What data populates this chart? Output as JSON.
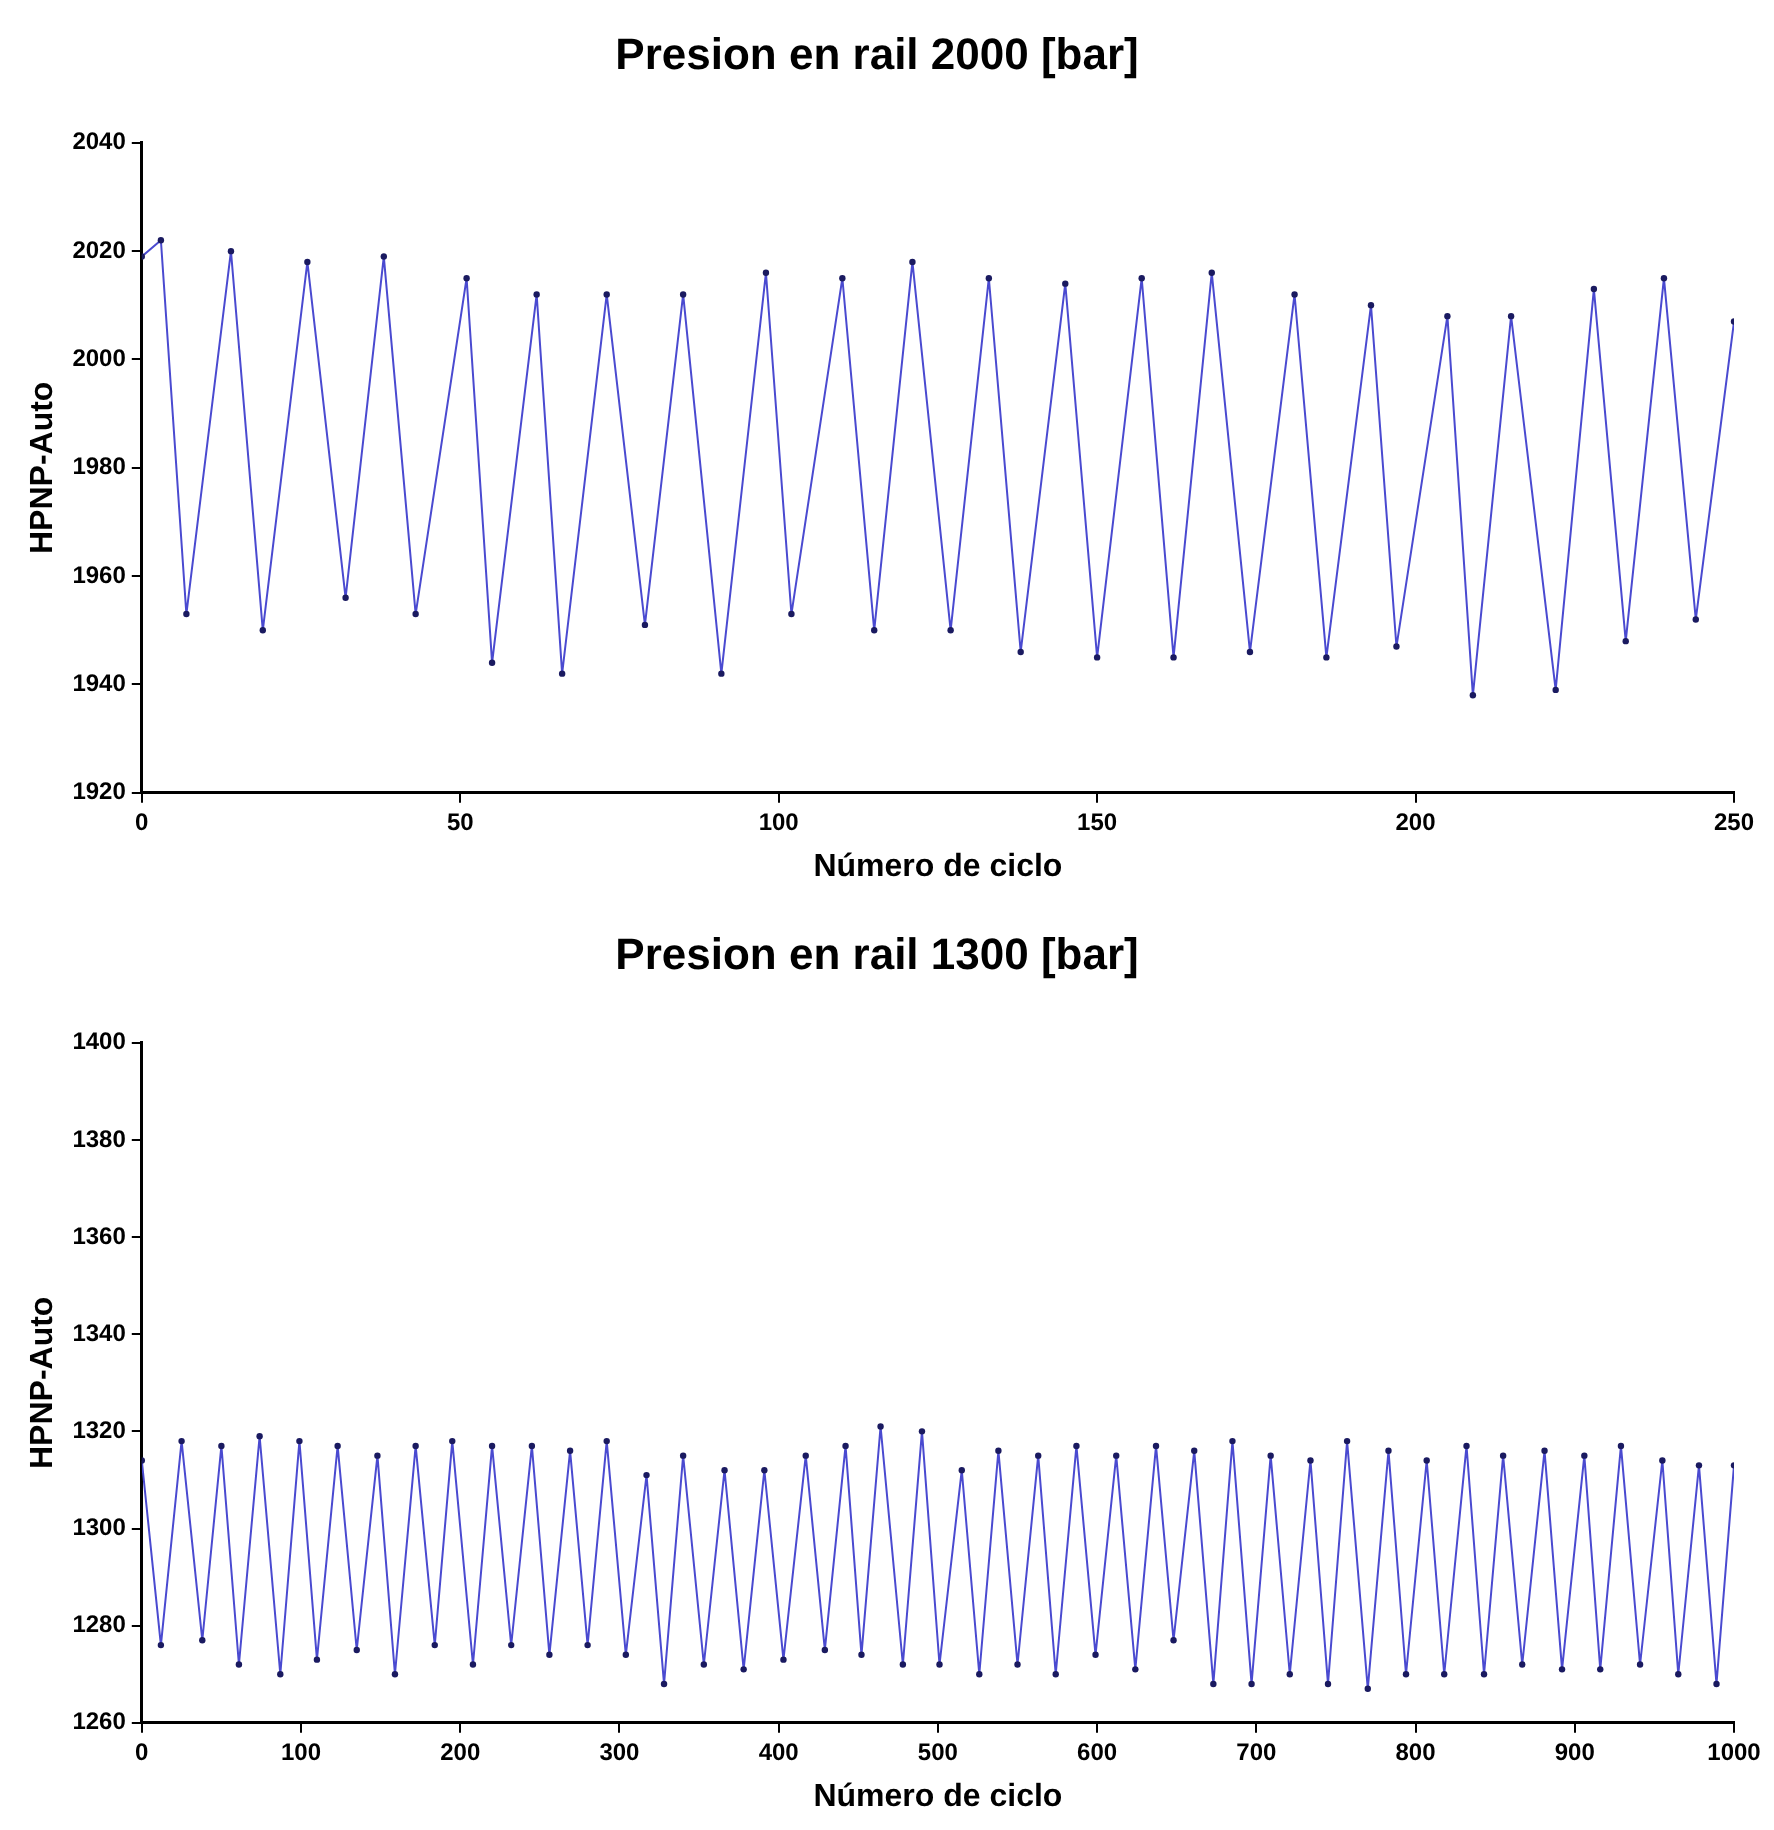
{
  "chart_data": [
    {
      "type": "line",
      "title": "Presion en rail 2000 [bar]",
      "xlabel": "Número de ciclo",
      "ylabel": "HPNP-Auto",
      "xlim": [
        0,
        250
      ],
      "xticks": [
        0,
        50,
        100,
        150,
        200,
        250
      ],
      "ylim": [
        1920,
        2040
      ],
      "yticks": [
        1920,
        1940,
        1960,
        1980,
        2000,
        2020,
        2040
      ],
      "grid": false,
      "marker": "circle",
      "line_style": "solid",
      "series": [
        {
          "color": "#4a4ad0",
          "x": [
            0,
            3,
            7,
            14,
            19,
            26,
            32,
            38,
            43,
            51,
            55,
            62,
            66,
            73,
            79,
            85,
            91,
            98,
            102,
            110,
            115,
            121,
            127,
            133,
            138,
            145,
            150,
            157,
            162,
            168,
            174,
            181,
            186,
            193,
            197,
            205,
            209,
            215,
            222,
            228,
            233,
            239,
            244,
            250
          ],
          "values": [
            2019,
            2022,
            1953,
            2020,
            1950,
            2018,
            1956,
            2019,
            1953,
            2015,
            1944,
            2012,
            1942,
            2012,
            1951,
            2012,
            1942,
            2016,
            1953,
            2015,
            1950,
            2018,
            1950,
            2015,
            1946,
            2014,
            1945,
            2015,
            1945,
            2016,
            1946,
            2012,
            1945,
            2010,
            1947,
            2008,
            1938,
            2008,
            1939,
            2013,
            1948,
            2015,
            1952,
            2007
          ]
        }
      ]
    },
    {
      "type": "line",
      "title": "Presion en rail 1300 [bar]",
      "xlabel": "Número de ciclo",
      "ylabel": "HPNP-Auto",
      "xlim": [
        0,
        1000
      ],
      "xticks": [
        0,
        100,
        200,
        300,
        400,
        500,
        600,
        700,
        800,
        900,
        1000
      ],
      "ylim": [
        1260,
        1400
      ],
      "yticks": [
        1260,
        1280,
        1300,
        1320,
        1340,
        1360,
        1380,
        1400
      ],
      "grid": false,
      "marker": "circle",
      "line_style": "solid",
      "series": [
        {
          "color": "#4a4ad0",
          "x": [
            0,
            12,
            25,
            38,
            50,
            61,
            74,
            87,
            99,
            110,
            123,
            135,
            148,
            159,
            172,
            184,
            195,
            208,
            220,
            232,
            245,
            256,
            269,
            280,
            292,
            304,
            317,
            328,
            340,
            353,
            366,
            378,
            391,
            403,
            417,
            429,
            442,
            452,
            464,
            478,
            490,
            501,
            515,
            526,
            538,
            550,
            563,
            574,
            587,
            599,
            612,
            624,
            637,
            648,
            661,
            673,
            685,
            697,
            709,
            721,
            734,
            745,
            757,
            770,
            783,
            794,
            807,
            818,
            832,
            843,
            855,
            867,
            881,
            892,
            906,
            916,
            929,
            941,
            955,
            965,
            978,
            989,
            1000
          ],
          "values": [
            1314,
            1276,
            1318,
            1277,
            1317,
            1272,
            1319,
            1270,
            1318,
            1273,
            1317,
            1275,
            1315,
            1270,
            1317,
            1276,
            1318,
            1272,
            1317,
            1276,
            1317,
            1274,
            1316,
            1276,
            1318,
            1274,
            1311,
            1268,
            1315,
            1272,
            1312,
            1271,
            1312,
            1273,
            1315,
            1275,
            1317,
            1274,
            1321,
            1272,
            1320,
            1272,
            1312,
            1270,
            1316,
            1272,
            1315,
            1270,
            1317,
            1274,
            1315,
            1271,
            1317,
            1277,
            1316,
            1268,
            1318,
            1268,
            1315,
            1270,
            1314,
            1268,
            1318,
            1267,
            1316,
            1270,
            1314,
            1270,
            1317,
            1270,
            1315,
            1272,
            1316,
            1271,
            1315,
            1271,
            1317,
            1272,
            1314,
            1270,
            1313,
            1268,
            1313
          ]
        }
      ]
    }
  ]
}
